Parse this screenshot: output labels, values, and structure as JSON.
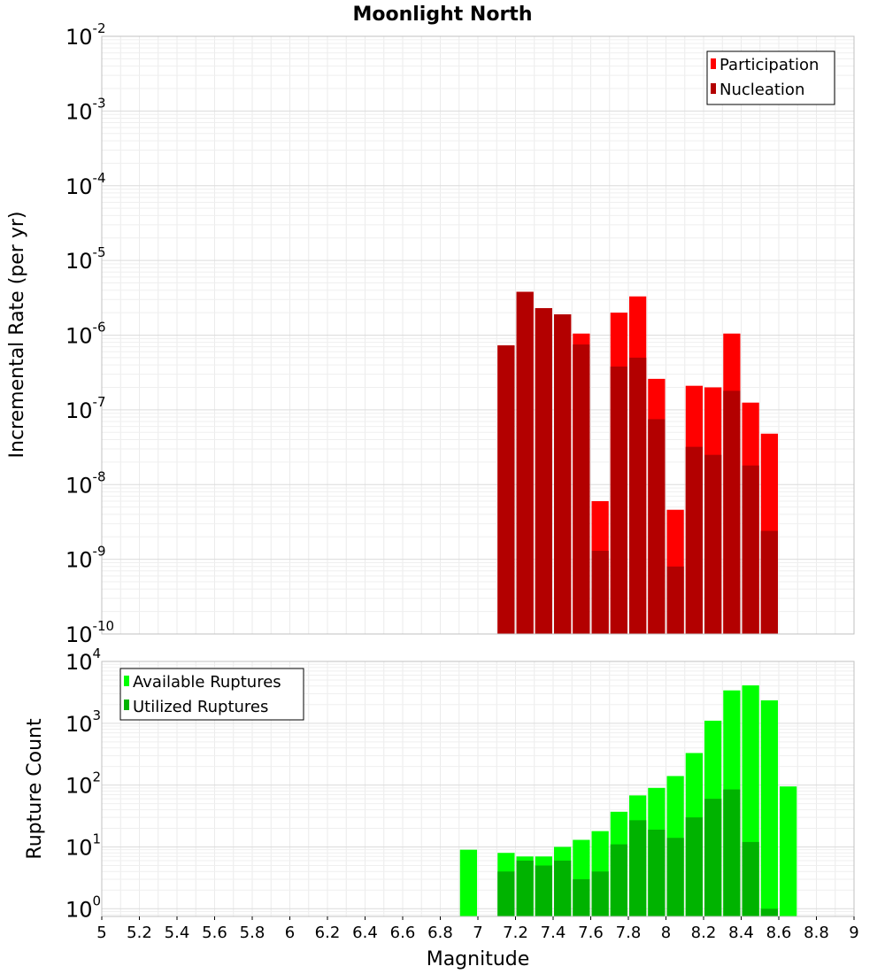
{
  "chart_data": [
    {
      "type": "bar",
      "title": "Moonlight North",
      "ylabel": "Incremental Rate (per yr)",
      "xlabel": "",
      "yscale": "log",
      "ylim": [
        1e-10,
        0.01
      ],
      "xlim": [
        5,
        9
      ],
      "bin_width": 0.1,
      "grid": true,
      "legend_position": "top-right",
      "y_tick_exponents": [
        "-10",
        "-9",
        "-8",
        "-7",
        "-6",
        "-5",
        "-4",
        "-3",
        "-2"
      ],
      "x": [
        7.15,
        7.25,
        7.35,
        7.45,
        7.55,
        7.65,
        7.75,
        7.85,
        7.95,
        8.05,
        8.15,
        8.25,
        8.35,
        8.45,
        8.55
      ],
      "series": [
        {
          "name": "Participation",
          "color": "#ff0000",
          "values": [
            7.3e-07,
            3.8e-06,
            2.3e-06,
            1.9e-06,
            1.05e-06,
            6e-09,
            2e-06,
            3.3e-06,
            2.6e-07,
            4.6e-09,
            2.1e-07,
            2e-07,
            1.05e-06,
            1.25e-07,
            4.8e-08
          ]
        },
        {
          "name": "Nucleation",
          "color": "#b30000",
          "values": [
            7.3e-07,
            3.8e-06,
            2.3e-06,
            1.9e-06,
            7.5e-07,
            1.3e-09,
            3.8e-07,
            5e-07,
            7.5e-08,
            8e-10,
            3.2e-08,
            2.5e-08,
            1.8e-07,
            1.8e-08,
            2.4e-09
          ]
        }
      ]
    },
    {
      "type": "bar",
      "title": "",
      "ylabel": "Rupture Count",
      "xlabel": "Magnitude",
      "yscale": "log",
      "ylim": [
        0.75,
        10000
      ],
      "xlim": [
        5,
        9
      ],
      "bin_width": 0.1,
      "grid": true,
      "legend_position": "top-left",
      "x_ticks": [
        "5",
        "5.2",
        "5.4",
        "5.6",
        "5.8",
        "6",
        "6.2",
        "6.4",
        "6.6",
        "6.8",
        "7",
        "7.2",
        "7.4",
        "7.6",
        "7.8",
        "8",
        "8.2",
        "8.4",
        "8.6",
        "8.8",
        "9"
      ],
      "y_tick_exponents": [
        "0",
        "1",
        "2",
        "3",
        "4"
      ],
      "x": [
        6.95,
        7.15,
        7.25,
        7.35,
        7.45,
        7.55,
        7.65,
        7.75,
        7.85,
        7.95,
        8.05,
        8.15,
        8.25,
        8.35,
        8.45,
        8.55,
        8.65
      ],
      "series": [
        {
          "name": "Available Ruptures",
          "color": "#00ff00",
          "values": [
            9,
            8,
            7,
            7,
            10,
            13,
            18,
            37,
            68,
            90,
            140,
            330,
            1100,
            3400,
            4100,
            2350,
            95
          ]
        },
        {
          "name": "Utilized Ruptures",
          "color": "#00b300",
          "values": [
            0,
            4,
            6,
            5,
            6,
            3,
            4,
            11,
            27,
            19,
            14,
            30,
            60,
            85,
            12,
            1,
            0
          ]
        }
      ]
    }
  ]
}
